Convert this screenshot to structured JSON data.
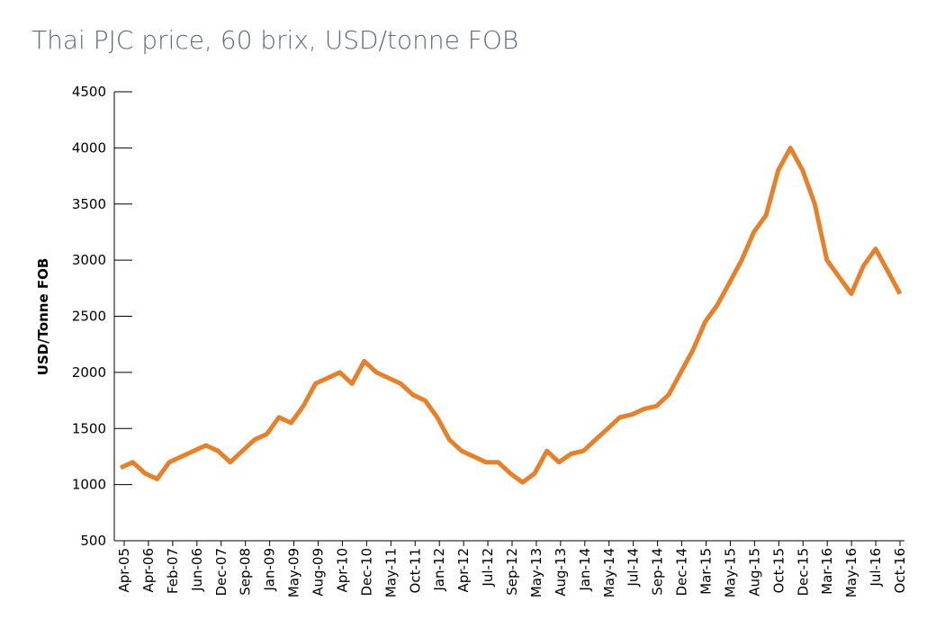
{
  "chart_data": {
    "type": "line",
    "title": "Thai PJC price, 60 brix, USD/tonne FOB",
    "ylabel": "USD/Tonne FOB",
    "x_labels": [
      "Apr-05",
      "Apr-06",
      "Feb-07",
      "Jun-06",
      "Dec-07",
      "Sep-08",
      "Jan-09",
      "May-09",
      "Aug-09",
      "Apr-10",
      "Dec-10",
      "May-11",
      "Oct-11",
      "Jan-12",
      "Apr-12",
      "Jul-12",
      "Sep-12",
      "May-13",
      "Aug-13",
      "Jan-14",
      "May-14",
      "Jul-14",
      "Sep-14",
      "Dec-14",
      "Mar-15",
      "May-15",
      "Aug-15",
      "Oct-15",
      "Dec-15",
      "Mar-16",
      "May-16",
      "Jul-16",
      "Oct-16"
    ],
    "values": [
      1150,
      1200,
      1100,
      1050,
      1200,
      1250,
      1300,
      1350,
      1300,
      1200,
      1300,
      1400,
      1450,
      1600,
      1550,
      1700,
      1900,
      1950,
      2000,
      1900,
      2100,
      2000,
      1950,
      1900,
      1800,
      1750,
      1600,
      1400,
      1300,
      1250,
      1200,
      1200,
      1100,
      1020,
      1100,
      1300,
      1200,
      1275,
      1300,
      1400,
      1500,
      1600,
      1625,
      1675,
      1700,
      1800,
      2000,
      2200,
      2450,
      2600,
      2800,
      3000,
      3250,
      3400,
      3800,
      4000,
      3800,
      3500,
      3000,
      2850,
      2700,
      2950,
      3100,
      2900,
      2700
    ],
    "color": "#e8802a",
    "ylim": [
      500,
      4500
    ],
    "yticks": [
      500,
      1000,
      1500,
      2000,
      2500,
      3000,
      3500,
      4000,
      4500
    ]
  }
}
